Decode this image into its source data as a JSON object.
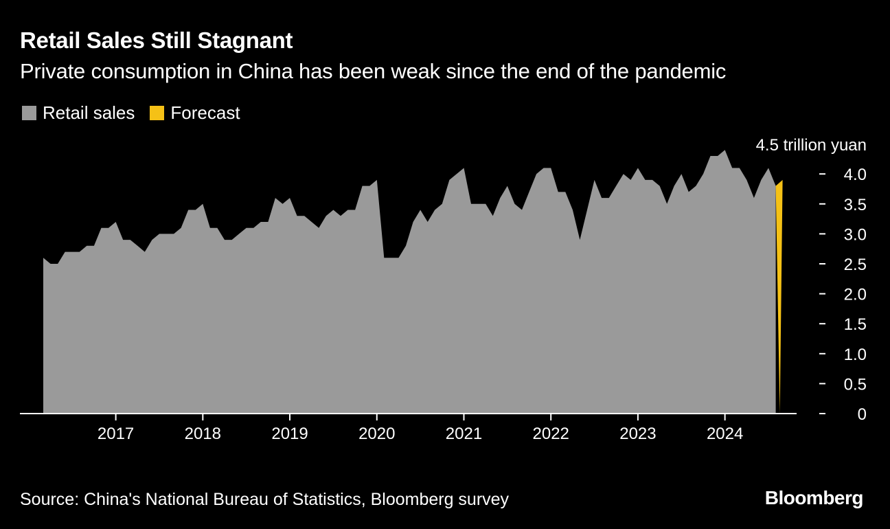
{
  "header": {
    "title": "Retail Sales Still Stagnant",
    "subtitle": "Private consumption in China has been weak since the end of the pandemic"
  },
  "footer": {
    "source": "Source: China's National Bureau of Statistics, Bloomberg survey",
    "brand": "Bloomberg"
  },
  "colors": {
    "background": "#000000",
    "retail": "#9a9a9a",
    "forecast": "#f5c116",
    "text": "#ffffff"
  },
  "chart_data": {
    "type": "area",
    "unit_label": "4.5 trillion yuan",
    "ylim": [
      0,
      4.5
    ],
    "yticks": [
      {
        "value": 0,
        "label": "0"
      },
      {
        "value": 0.5,
        "label": "0.5"
      },
      {
        "value": 1.0,
        "label": "1.0"
      },
      {
        "value": 1.5,
        "label": "1.5"
      },
      {
        "value": 2.0,
        "label": "2.0"
      },
      {
        "value": 2.5,
        "label": "2.5"
      },
      {
        "value": 3.0,
        "label": "3.0"
      },
      {
        "value": 3.5,
        "label": "3.5"
      },
      {
        "value": 4.0,
        "label": "4.0"
      }
    ],
    "xticks": [
      "2017",
      "2018",
      "2019",
      "2020",
      "2021",
      "2022",
      "2023",
      "2024"
    ],
    "start": "2016-03",
    "grid": false,
    "legend_position": "top-left",
    "series": [
      {
        "name": "Retail sales",
        "values": [
          2.6,
          2.5,
          2.5,
          2.7,
          2.7,
          2.7,
          2.8,
          2.8,
          3.1,
          3.1,
          3.2,
          2.9,
          2.9,
          2.8,
          2.7,
          2.9,
          3.0,
          3.0,
          3.0,
          3.1,
          3.4,
          3.4,
          3.5,
          3.1,
          3.1,
          2.9,
          2.9,
          3.0,
          3.1,
          3.1,
          3.2,
          3.2,
          3.6,
          3.5,
          3.6,
          3.3,
          3.3,
          3.2,
          3.1,
          3.3,
          3.4,
          3.3,
          3.4,
          3.4,
          3.8,
          3.8,
          3.9,
          2.6,
          2.6,
          2.6,
          2.8,
          3.2,
          3.4,
          3.2,
          3.4,
          3.5,
          3.9,
          4.0,
          4.1,
          3.5,
          3.5,
          3.5,
          3.3,
          3.6,
          3.8,
          3.5,
          3.4,
          3.7,
          4.0,
          4.1,
          4.1,
          3.7,
          3.7,
          3.4,
          2.9,
          3.4,
          3.9,
          3.6,
          3.6,
          3.8,
          4.0,
          3.9,
          4.1,
          3.9,
          3.9,
          3.8,
          3.5,
          3.8,
          4.0,
          3.7,
          3.8,
          4.0,
          4.3,
          4.3,
          4.4,
          4.1,
          4.1,
          3.9,
          3.6,
          3.9,
          4.1,
          3.8
        ]
      },
      {
        "name": "Forecast",
        "values": [
          3.9
        ]
      }
    ]
  }
}
